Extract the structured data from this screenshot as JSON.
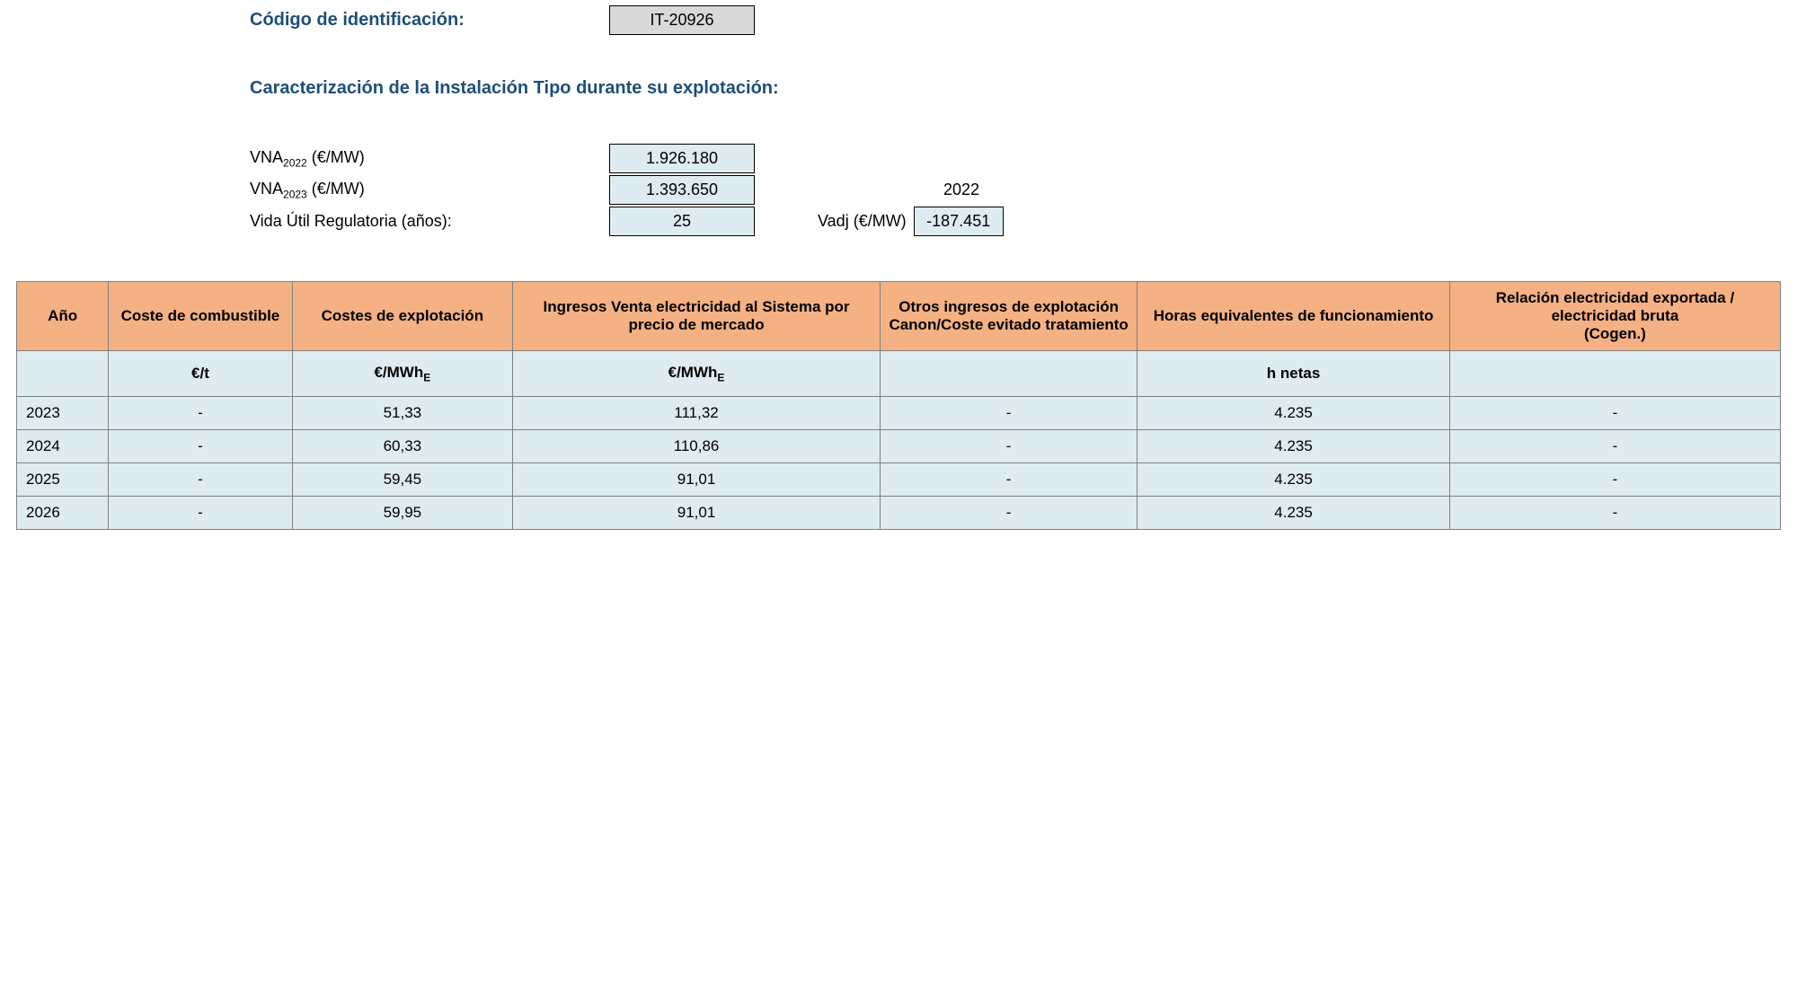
{
  "header": {
    "codigo_label": "Código de identificación:",
    "codigo_value": "IT-20926",
    "caract_label": "Caracterización de la Instalación Tipo durante su explotación:"
  },
  "params": {
    "vna2022_label_pre": "VNA",
    "vna2022_sub": "2022",
    "vna_unit": " (€/MW)",
    "vna2022_value": "1.926.180",
    "vna2023_sub": "2023",
    "vna2023_value": "1.393.650",
    "vida_label": "Vida Útil Regulatoria (años):",
    "vida_value": "25",
    "side_year": "2022",
    "vadj_label": "Vadj (€/MW)",
    "vadj_value": "-187.451"
  },
  "table": {
    "headers": {
      "ano": "Año",
      "coste_comb": "Coste de combustible",
      "costes_expl": "Costes de explotación",
      "ingresos": "Ingresos Venta electricidad al Sistema por precio de mercado",
      "otros": "Otros ingresos de explotación Canon/Coste evitado tratamiento",
      "horas": "Horas equivalentes de funcionamiento",
      "relacion": "Relación electricidad exportada / electricidad bruta\n(Cogen.)"
    },
    "units": {
      "ano": "",
      "coste_comb": "€/t",
      "costes_expl_pre": "€/MWh",
      "ingresos_pre": "€/MWh",
      "sub_e": "E",
      "otros": "",
      "horas": "h netas",
      "relacion": ""
    },
    "rows": [
      {
        "ano": "2023",
        "coste": "-",
        "expl": "51,33",
        "ing": "111,32",
        "otros": "-",
        "horas": "4.235",
        "rel": "-"
      },
      {
        "ano": "2024",
        "coste": "-",
        "expl": "60,33",
        "ing": "110,86",
        "otros": "-",
        "horas": "4.235",
        "rel": "-"
      },
      {
        "ano": "2025",
        "coste": "-",
        "expl": "59,45",
        "ing": "91,01",
        "otros": "-",
        "horas": "4.235",
        "rel": "-"
      },
      {
        "ano": "2026",
        "coste": "-",
        "expl": "59,95",
        "ing": "91,01",
        "otros": "-",
        "horas": "4.235",
        "rel": "-"
      }
    ]
  }
}
